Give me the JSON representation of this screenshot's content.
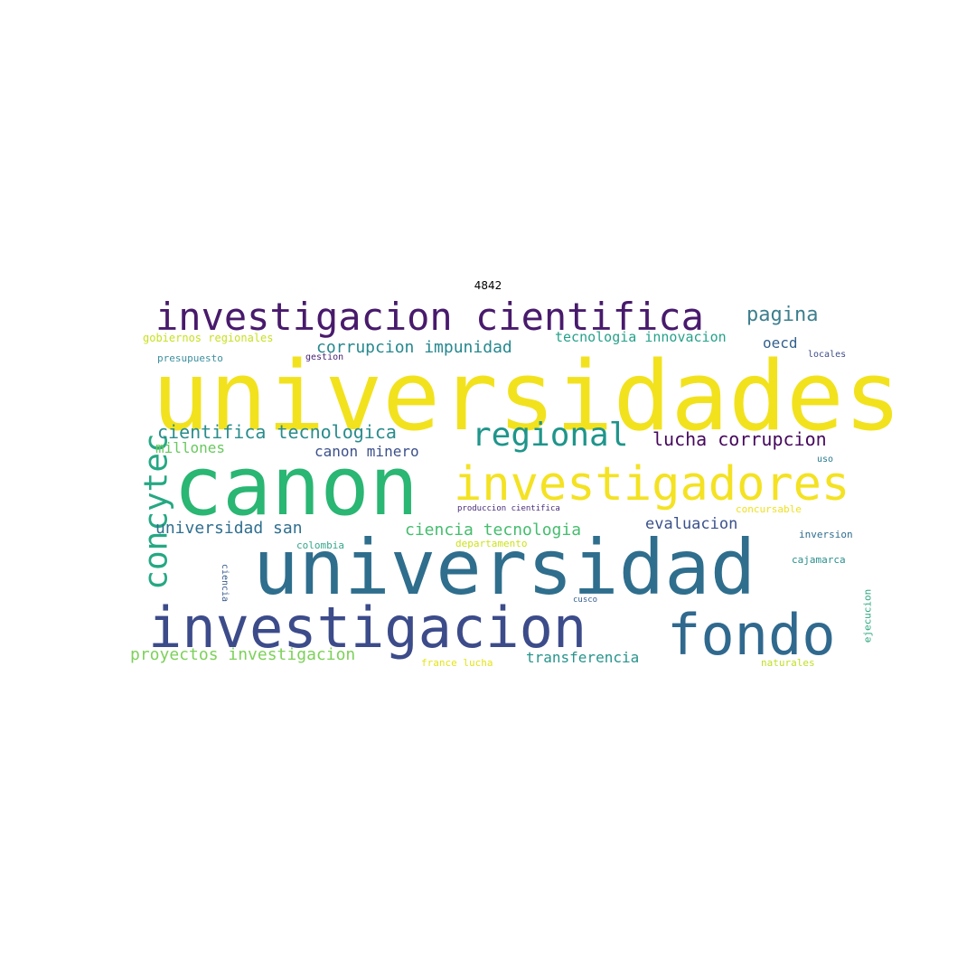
{
  "title": "4842",
  "words": [
    {
      "text": "universidades",
      "color": "#f2e21d"
    },
    {
      "text": "canon",
      "color": "#2ab673"
    },
    {
      "text": "universidad",
      "color": "#2f6e8d"
    },
    {
      "text": "investigacion",
      "color": "#3c4b8a"
    },
    {
      "text": "investigacion cientifica",
      "color": "#481a6c"
    },
    {
      "text": "investigadores",
      "color": "#f4e223"
    },
    {
      "text": "fondo",
      "color": "#30698e"
    },
    {
      "text": "regional",
      "color": "#1f958b"
    },
    {
      "text": "concytec",
      "color": "#25a883"
    },
    {
      "text": "pagina",
      "color": "#3d7f8e"
    },
    {
      "text": "cientifica tecnologica",
      "color": "#2a8c8c"
    },
    {
      "text": "lucha corrupcion",
      "color": "#46085c"
    },
    {
      "text": "corrupcion impunidad",
      "color": "#26888e"
    },
    {
      "text": "proyectos investigacion",
      "color": "#7dd15a"
    },
    {
      "text": "universidad san",
      "color": "#2f6f8e"
    },
    {
      "text": "ciencia tecnologia",
      "color": "#45bd6e"
    },
    {
      "text": "evaluacion",
      "color": "#3b518b"
    },
    {
      "text": "millones",
      "color": "#68c95f"
    },
    {
      "text": "canon minero",
      "color": "#3c508b"
    },
    {
      "text": "tecnologia innovacion",
      "color": "#26a18a"
    },
    {
      "text": "transferencia",
      "color": "#27948c"
    },
    {
      "text": "oecd",
      "color": "#33608d"
    },
    {
      "text": "gobiernos regionales",
      "color": "#c8e021"
    },
    {
      "text": "presupuesto",
      "color": "#3b8f9e"
    },
    {
      "text": "gestion",
      "color": "#482475"
    },
    {
      "text": "locales",
      "color": "#3d4d8a"
    },
    {
      "text": "uso",
      "color": "#2a7a8e"
    },
    {
      "text": "produccion cientifica",
      "color": "#472d7b"
    },
    {
      "text": "concursable",
      "color": "#f0e11f"
    },
    {
      "text": "colombia",
      "color": "#34a78a"
    },
    {
      "text": "departamento",
      "color": "#cde11d"
    },
    {
      "text": "inversion",
      "color": "#2e6d8e"
    },
    {
      "text": "cajamarca",
      "color": "#2a8f8c"
    },
    {
      "text": "ciencia",
      "color": "#37598c"
    },
    {
      "text": "cusco",
      "color": "#355f8d"
    },
    {
      "text": "ejecucion",
      "color": "#2da87f"
    },
    {
      "text": "france lucha",
      "color": "#e4e419"
    },
    {
      "text": "naturales",
      "color": "#bfdf25"
    }
  ]
}
